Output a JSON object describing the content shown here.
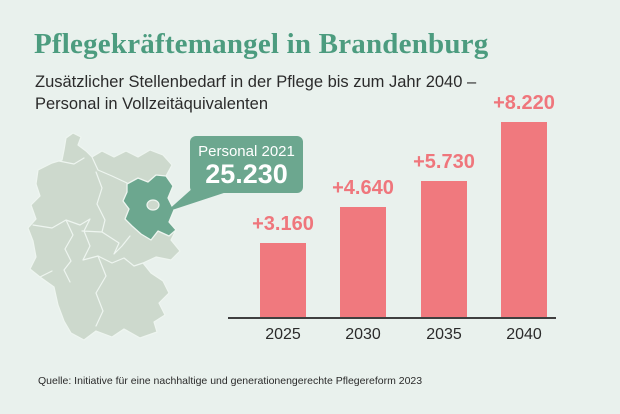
{
  "header": {
    "title": "Pflegekräftemangel in Brandenburg",
    "subtitle_line1": "Zusätzlicher Stellenbedarf in der Pflege bis zum Jahr 2040 –",
    "subtitle_line2": "Personal in Vollzeitäquivalenten"
  },
  "map": {
    "country": "Deutschland",
    "highlighted_region": "Brandenburg"
  },
  "callout": {
    "label": "Personal 2021",
    "value": "25.230"
  },
  "chart_data": {
    "type": "bar",
    "categories": [
      "2025",
      "2030",
      "2035",
      "2040"
    ],
    "values": [
      3160,
      4640,
      5730,
      8220
    ],
    "bar_labels": [
      "+3.160",
      "+4.640",
      "+5.730",
      "+8.220"
    ],
    "title": "Pflegekräftemangel in Brandenburg",
    "xlabel": "",
    "ylabel": "",
    "ylim": [
      0,
      8220
    ],
    "grid": false,
    "legend": "none"
  },
  "footer": {
    "source": "Quelle: Initiative für eine nachhaltige und generationengerechte Pflegereform 2023"
  },
  "colors": {
    "background": "#e9f1ed",
    "title_green": "#4c9c7f",
    "region_green": "#6ca78f",
    "map_light": "#cdd9cd",
    "map_border": "#eef5f0",
    "bar_pink": "#f0797e",
    "text_dark": "#2b2b2b"
  }
}
